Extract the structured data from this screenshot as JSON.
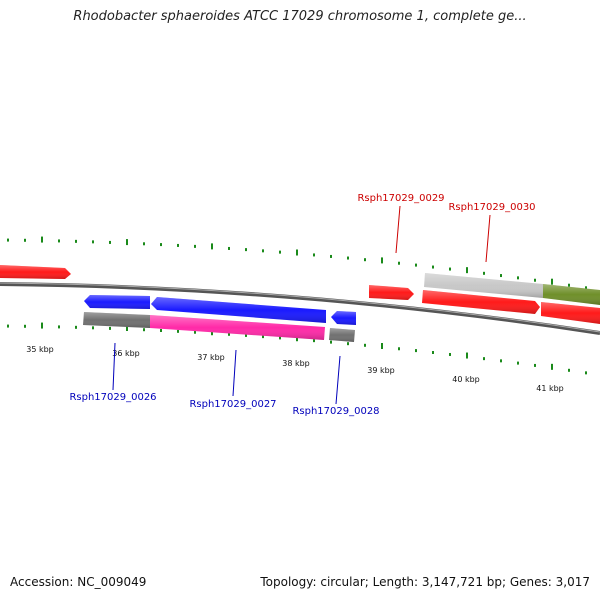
{
  "title": "Rhodobacter sphaeroides ATCC 17029 chromosome 1, complete ge...",
  "colors": {
    "cds_red": "#ff1a1a",
    "cds_blue": "#1a1aff",
    "pink": "#ff2aa8",
    "gray": "#707070",
    "light_gray": "#c8c8c8",
    "olive": "#6f8f2a",
    "tick_green": "#1a8a1a",
    "label_blue": "#0000bb",
    "label_red": "#cc0000"
  },
  "scale_labels": [
    "35 kbp",
    "36 kbp",
    "37 kbp",
    "38 kbp",
    "39 kbp",
    "40 kbp",
    "41 kbp"
  ],
  "genes": [
    {
      "id": "Rsph17029_0026"
    },
    {
      "id": "Rsph17029_0027"
    },
    {
      "id": "Rsph17029_0028"
    },
    {
      "id": "Rsph17029_0029"
    },
    {
      "id": "Rsph17029_0030"
    }
  ],
  "footer": {
    "accession": "Accession: NC_009049",
    "topology": "Topology: circular; Length: 3,147,721 bp; Genes: 3,017"
  }
}
